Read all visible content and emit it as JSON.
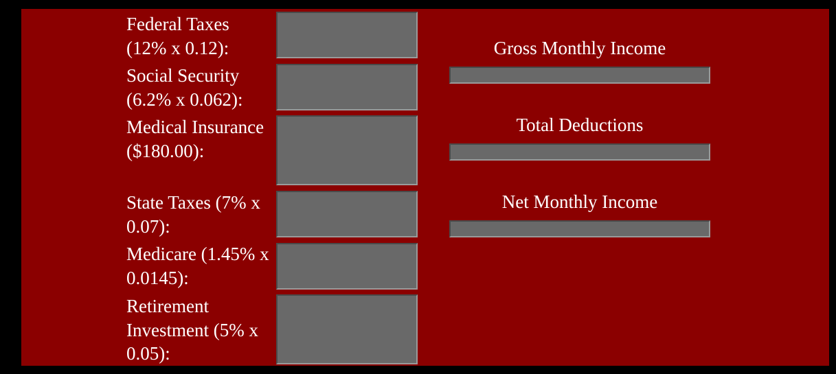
{
  "colors": {
    "page_background": "#000000",
    "panel_background": "#8b0000",
    "field_background": "#696969",
    "text": "#ffffff"
  },
  "deductions": [
    {
      "label": "Federal Taxes (12% x 0.12):",
      "value": ""
    },
    {
      "label": "Social Security (6.2% x 0.062):",
      "value": ""
    },
    {
      "label": "Medical Insurance ($180.00):",
      "value": ""
    },
    {
      "label": "State Taxes (7% x 0.07):",
      "value": ""
    },
    {
      "label": "Medicare (1.45% x 0.0145):",
      "value": ""
    },
    {
      "label": "Retirement Investment (5% x 0.05):",
      "value": ""
    }
  ],
  "summary": {
    "gross_label": "Gross Monthly Income",
    "gross_value": "",
    "deductions_label": "Total Deductions",
    "deductions_value": "",
    "net_label": "Net Monthly Income",
    "net_value": ""
  }
}
